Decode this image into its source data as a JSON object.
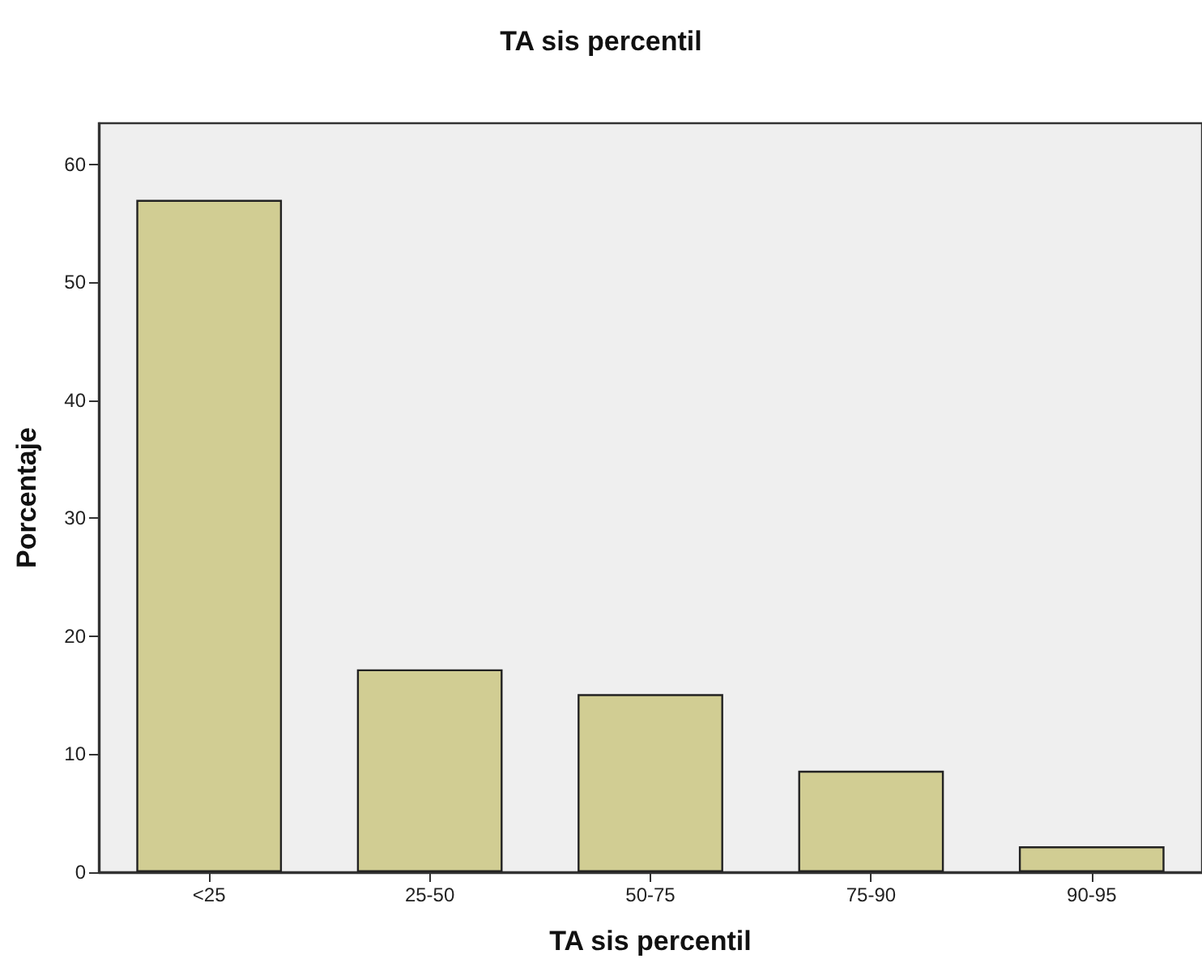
{
  "chart_data": {
    "type": "bar",
    "title": "TA sis percentil",
    "xlabel": "TA sis percentil",
    "ylabel": "Porcentaje",
    "categories": [
      "<25",
      "25-50",
      "50-75",
      "75-90",
      "90-95"
    ],
    "values": [
      57.0,
      17.2,
      15.1,
      8.6,
      2.2
    ],
    "color": "#d1cd93",
    "ylim": [
      0,
      63.5
    ],
    "yticks": [
      0,
      10,
      20,
      30,
      40,
      50,
      60
    ],
    "grid": false
  }
}
